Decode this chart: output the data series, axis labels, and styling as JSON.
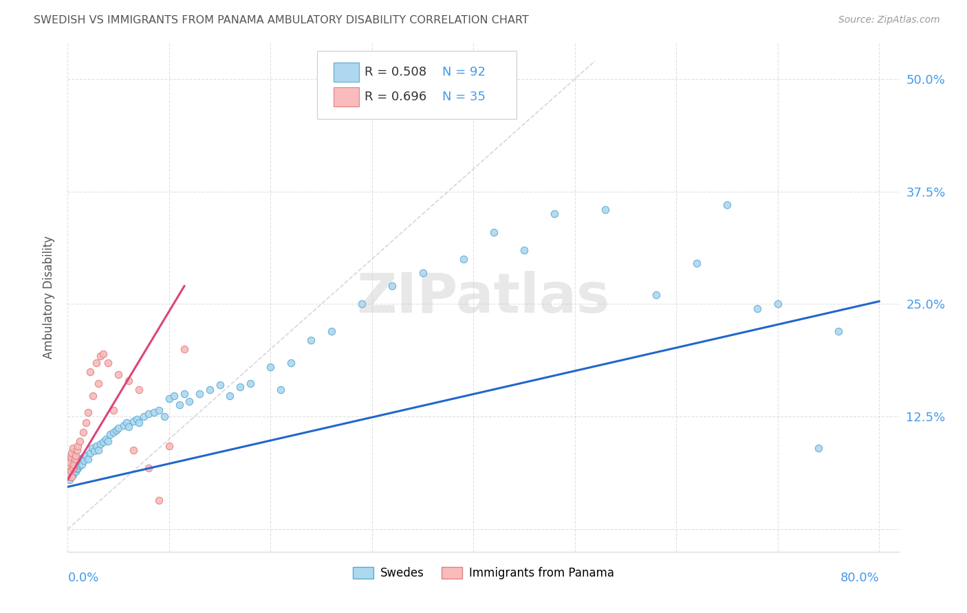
{
  "title": "SWEDISH VS IMMIGRANTS FROM PANAMA AMBULATORY DISABILITY CORRELATION CHART",
  "source": "Source: ZipAtlas.com",
  "ylabel": "Ambulatory Disability",
  "xlim": [
    0.0,
    0.82
  ],
  "ylim": [
    -0.025,
    0.54
  ],
  "ytick_positions": [
    0.0,
    0.125,
    0.25,
    0.375,
    0.5
  ],
  "ytick_labels": [
    "",
    "12.5%",
    "25.0%",
    "37.5%",
    "50.0%"
  ],
  "xtick_positions": [
    0.0,
    0.1,
    0.2,
    0.3,
    0.4,
    0.5,
    0.6,
    0.7,
    0.8
  ],
  "swedes_R": 0.508,
  "swedes_N": 92,
  "panama_R": 0.696,
  "panama_N": 35,
  "swedes_color": "#ADD8F0",
  "panama_color": "#F9BBBB",
  "swedes_edge_color": "#5AAAD0",
  "panama_edge_color": "#E08080",
  "swedes_line_color": "#2266CC",
  "panama_line_color": "#DD4477",
  "diag_color": "#CCCCCC",
  "background_color": "#FFFFFF",
  "grid_color": "#CCCCCC",
  "title_color": "#555555",
  "ylabel_color": "#555555",
  "tick_label_color": "#4499EE",
  "source_color": "#999999",
  "legend_text_color": "#4499EE",
  "legend_r_color": "#333333",
  "watermark_color": "#E8E8E8",
  "swedes_line_start_x": 0.0,
  "swedes_line_end_x": 0.8,
  "swedes_line_start_y": 0.047,
  "swedes_line_end_y": 0.253,
  "panama_line_start_x": 0.0,
  "panama_line_start_y": 0.055,
  "panama_line_end_x": 0.115,
  "panama_line_end_y": 0.27,
  "swedes_x": [
    0.001,
    0.001,
    0.001,
    0.002,
    0.002,
    0.002,
    0.003,
    0.003,
    0.003,
    0.003,
    0.004,
    0.004,
    0.004,
    0.005,
    0.005,
    0.005,
    0.005,
    0.006,
    0.006,
    0.006,
    0.007,
    0.007,
    0.007,
    0.008,
    0.008,
    0.009,
    0.009,
    0.01,
    0.01,
    0.011,
    0.012,
    0.013,
    0.014,
    0.015,
    0.016,
    0.018,
    0.02,
    0.022,
    0.024,
    0.026,
    0.028,
    0.03,
    0.032,
    0.035,
    0.038,
    0.04,
    0.042,
    0.045,
    0.048,
    0.05,
    0.055,
    0.058,
    0.06,
    0.065,
    0.068,
    0.07,
    0.075,
    0.08,
    0.085,
    0.09,
    0.095,
    0.1,
    0.105,
    0.11,
    0.115,
    0.12,
    0.13,
    0.14,
    0.15,
    0.16,
    0.17,
    0.18,
    0.2,
    0.21,
    0.22,
    0.24,
    0.26,
    0.29,
    0.32,
    0.35,
    0.39,
    0.42,
    0.45,
    0.48,
    0.53,
    0.58,
    0.62,
    0.65,
    0.68,
    0.7,
    0.74,
    0.76
  ],
  "swedes_y": [
    0.06,
    0.065,
    0.07,
    0.055,
    0.068,
    0.075,
    0.058,
    0.065,
    0.072,
    0.078,
    0.062,
    0.07,
    0.08,
    0.06,
    0.068,
    0.074,
    0.082,
    0.063,
    0.071,
    0.079,
    0.065,
    0.073,
    0.081,
    0.064,
    0.074,
    0.067,
    0.076,
    0.068,
    0.078,
    0.07,
    0.072,
    0.074,
    0.072,
    0.08,
    0.076,
    0.082,
    0.078,
    0.085,
    0.09,
    0.087,
    0.092,
    0.088,
    0.095,
    0.097,
    0.1,
    0.098,
    0.105,
    0.108,
    0.11,
    0.112,
    0.115,
    0.118,
    0.114,
    0.12,
    0.122,
    0.118,
    0.125,
    0.128,
    0.13,
    0.132,
    0.125,
    0.145,
    0.148,
    0.138,
    0.15,
    0.142,
    0.15,
    0.155,
    0.16,
    0.148,
    0.158,
    0.162,
    0.18,
    0.155,
    0.185,
    0.21,
    0.22,
    0.25,
    0.27,
    0.285,
    0.3,
    0.33,
    0.31,
    0.35,
    0.355,
    0.26,
    0.295,
    0.36,
    0.245,
    0.25,
    0.09,
    0.22
  ],
  "panama_x": [
    0.001,
    0.001,
    0.002,
    0.002,
    0.003,
    0.003,
    0.004,
    0.004,
    0.005,
    0.005,
    0.006,
    0.007,
    0.008,
    0.009,
    0.01,
    0.012,
    0.015,
    0.018,
    0.02,
    0.022,
    0.025,
    0.028,
    0.03,
    0.032,
    0.035,
    0.04,
    0.045,
    0.05,
    0.06,
    0.065,
    0.07,
    0.08,
    0.09,
    0.1,
    0.115
  ],
  "panama_y": [
    0.062,
    0.07,
    0.06,
    0.075,
    0.065,
    0.08,
    0.058,
    0.085,
    0.068,
    0.09,
    0.072,
    0.078,
    0.082,
    0.088,
    0.092,
    0.098,
    0.108,
    0.118,
    0.13,
    0.175,
    0.148,
    0.185,
    0.162,
    0.192,
    0.195,
    0.185,
    0.132,
    0.172,
    0.165,
    0.088,
    0.155,
    0.068,
    0.032,
    0.092,
    0.2
  ]
}
